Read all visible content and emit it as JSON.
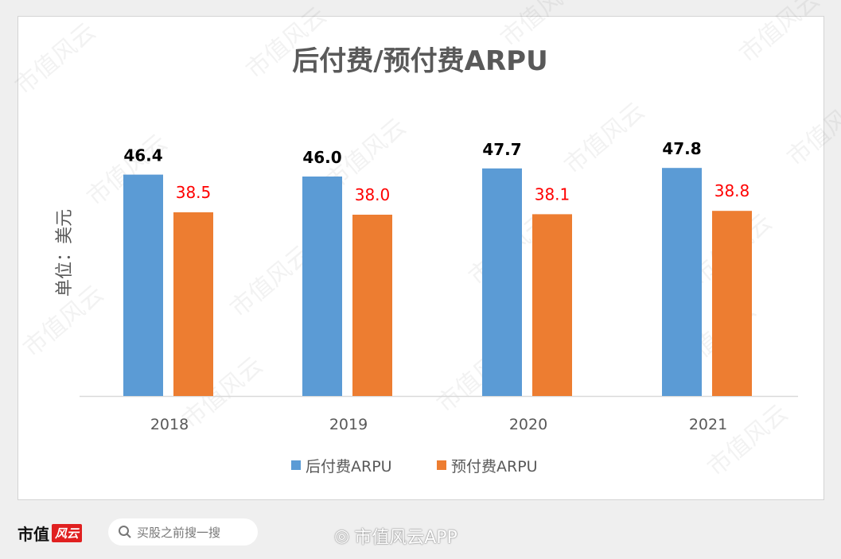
{
  "chart_data": {
    "type": "bar",
    "title": "后付费/预付费ARPU",
    "ylabel": "单位：美元",
    "xlabel": "",
    "categories": [
      "2018",
      "2019",
      "2020",
      "2021"
    ],
    "series": [
      {
        "name": "后付费ARPU",
        "values": [
          46.4,
          46.0,
          47.7,
          47.8
        ],
        "color": "#5b9bd5",
        "label_color": "#000000"
      },
      {
        "name": "预付费ARPU",
        "values": [
          38.5,
          38.0,
          38.1,
          38.8
        ],
        "color": "#ed7d31",
        "label_color": "#ff0000"
      }
    ],
    "ylim": [
      0,
      55
    ],
    "grid": false,
    "legend": "bottom"
  },
  "watermark": "市值风云",
  "footer": {
    "logo_text": "市值",
    "logo_badge": "风云",
    "search_placeholder": "买股之前搜一搜",
    "weibo_text": "市值风云APP"
  }
}
